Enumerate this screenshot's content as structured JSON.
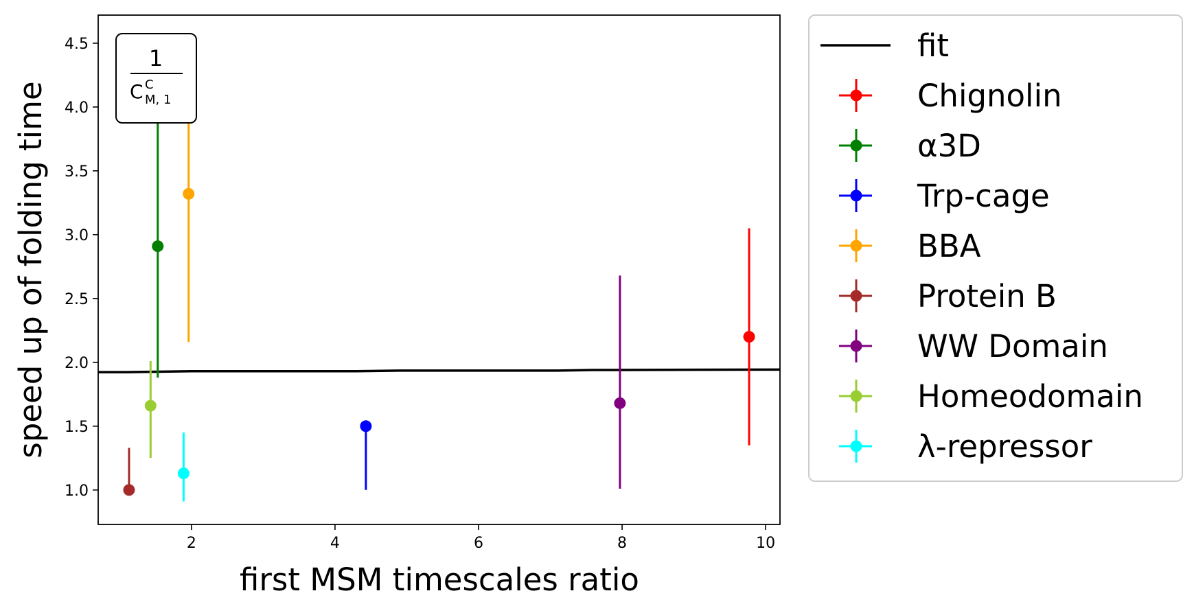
{
  "chart_data": {
    "type": "scatter",
    "xlabel": "first MSM timescales ratio",
    "ylabel": "speed up of folding time",
    "xlim": [
      0.7,
      10.2
    ],
    "ylim": [
      0.73,
      4.72
    ],
    "x_ticks": [
      2,
      4,
      6,
      8,
      10
    ],
    "y_ticks": [
      1.0,
      1.5,
      2.0,
      2.5,
      3.0,
      3.5,
      4.0,
      4.5
    ],
    "grid": false,
    "legend_position": "outside-right",
    "annotation": {
      "numerator": "1",
      "base": "C",
      "superscript": "C",
      "subscript": "M, 1"
    },
    "fit": {
      "name": "fit",
      "color": "#000000",
      "x": [
        0.7,
        1.1,
        2.0,
        4.3,
        4.9,
        7.1,
        7.6,
        10.2
      ],
      "y": [
        1.923,
        1.923,
        1.93,
        1.93,
        1.935,
        1.935,
        1.94,
        1.943
      ]
    },
    "series": [
      {
        "name": "Chignolin",
        "color": "#ff0000",
        "x": 9.77,
        "y": 2.2,
        "y_low": 1.35,
        "y_high": 3.05
      },
      {
        "name": "α3D",
        "color": "#008000",
        "x": 1.53,
        "y": 2.91,
        "y_low": 1.88,
        "y_high": 3.95
      },
      {
        "name": "Trp-cage",
        "color": "#0000ff",
        "x": 4.43,
        "y": 1.5,
        "y_low": 1.0,
        "y_high": 1.5
      },
      {
        "name": "BBA",
        "color": "#ffa500",
        "x": 1.96,
        "y": 3.32,
        "y_low": 2.16,
        "y_high": 3.95
      },
      {
        "name": "Protein B",
        "color": "#a52a2a",
        "x": 1.13,
        "y": 1.0,
        "y_low": 1.0,
        "y_high": 1.33
      },
      {
        "name": "WW Domain",
        "color": "#800080",
        "x": 7.97,
        "y": 1.68,
        "y_low": 1.01,
        "y_high": 2.68
      },
      {
        "name": "Homeodomain",
        "color": "#9acd32",
        "x": 1.43,
        "y": 1.66,
        "y_low": 1.25,
        "y_high": 2.01
      },
      {
        "name": "λ-repressor",
        "color": "#00ffff",
        "x": 1.89,
        "y": 1.13,
        "y_low": 0.91,
        "y_high": 1.45
      }
    ]
  }
}
